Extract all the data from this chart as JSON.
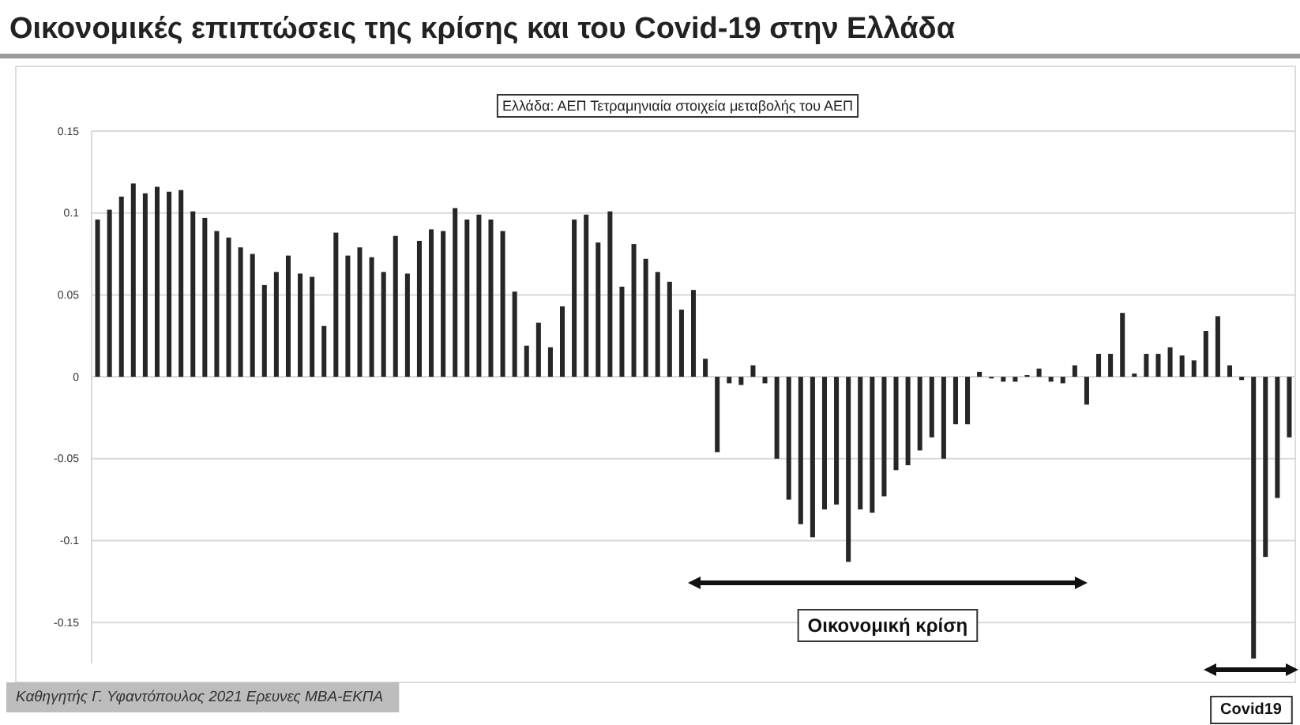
{
  "chart_data": {
    "type": "bar",
    "title": "Οικονομικές επιπτώσεις της κρίσης και του Covid-19 στην Ελλάδα",
    "subtitle": "Ελλάδα: ΑΕΠ Τετραμηνιαία στοιχεία μεταβολής του ΑΕΠ",
    "categories": [
      null,
      null,
      null,
      null,
      null,
      null,
      null,
      null,
      null,
      null,
      null,
      null,
      null,
      null,
      null,
      null,
      null,
      null,
      null,
      null,
      null,
      null,
      null,
      null,
      null,
      null,
      null,
      null,
      null,
      null,
      null,
      null,
      null,
      null,
      null,
      null,
      null,
      null,
      null,
      null,
      null,
      null,
      null,
      null,
      null,
      null,
      null,
      null,
      null,
      null,
      null,
      null,
      null,
      null,
      null,
      null,
      null,
      null,
      null,
      null,
      null,
      null,
      null,
      null,
      null,
      null,
      null,
      null,
      null,
      null,
      null,
      null,
      null,
      null,
      null,
      null,
      null,
      null,
      null,
      null,
      null,
      null,
      null,
      null,
      null,
      null,
      null,
      null,
      null,
      null,
      null,
      null,
      null,
      null,
      null,
      null,
      null,
      null,
      null,
      null,
      null
    ],
    "values": [
      0.096,
      0.102,
      0.11,
      0.118,
      0.112,
      0.116,
      0.113,
      0.114,
      0.101,
      0.097,
      0.089,
      0.085,
      0.079,
      0.075,
      0.056,
      0.064,
      0.074,
      0.063,
      0.061,
      0.031,
      0.088,
      0.074,
      0.079,
      0.073,
      0.064,
      0.086,
      0.063,
      0.083,
      0.09,
      0.089,
      0.103,
      0.096,
      0.099,
      0.096,
      0.089,
      0.052,
      0.019,
      0.033,
      0.018,
      0.043,
      0.096,
      0.099,
      0.082,
      0.101,
      0.055,
      0.081,
      0.072,
      0.064,
      0.058,
      0.041,
      0.053,
      0.011,
      -0.046,
      -0.004,
      -0.005,
      0.007,
      -0.004,
      -0.05,
      -0.075,
      -0.09,
      -0.098,
      -0.081,
      -0.078,
      -0.113,
      -0.081,
      -0.083,
      -0.073,
      -0.057,
      -0.054,
      -0.045,
      -0.037,
      -0.05,
      -0.029,
      -0.029,
      0.003,
      -0.001,
      -0.003,
      -0.003,
      0.001,
      0.005,
      -0.003,
      -0.004,
      0.007,
      -0.017,
      0.014,
      0.014,
      0.039,
      0.002,
      0.014,
      0.014,
      0.018,
      0.013,
      0.01,
      0.028,
      0.037,
      0.007,
      -0.002,
      -0.172,
      -0.11,
      -0.074,
      -0.037
    ],
    "color": "#262626",
    "ylim": [
      -0.175,
      0.15
    ],
    "yticks": [
      0.15,
      0.1,
      0.05,
      0,
      -0.05,
      -0.1,
      -0.15
    ],
    "grid": "y",
    "annotations": [
      "Οικονομική κρίση",
      "Covid19",
      "Καθηγητής Γ. Υφαντόπουλος 2021 Ερευνες ΜΒΑ-ΕΚΠΑ"
    ]
  }
}
